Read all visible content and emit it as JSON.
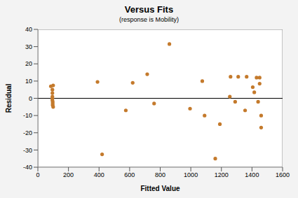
{
  "chart_data": {
    "type": "scatter",
    "title": "Versus Fits",
    "subtitle": "(response is Mobility)",
    "x_label": "Fitted Value",
    "y_label": "Residual",
    "x": [
      85,
      100,
      95,
      95,
      95,
      95,
      95,
      97,
      97,
      97,
      100,
      390,
      420,
      575,
      620,
      715,
      760,
      860,
      995,
      1075,
      1090,
      1160,
      1190,
      1255,
      1260,
      1290,
      1310,
      1355,
      1365,
      1405,
      1415,
      1430,
      1440,
      1450,
      1450,
      1460,
      1460
    ],
    "values": [
      7,
      7.5,
      5,
      3,
      1,
      0,
      -1,
      -2,
      -3,
      -4,
      -5,
      9.5,
      -32.5,
      -7,
      9,
      14,
      -3,
      31.5,
      -6,
      10,
      -10,
      -35,
      -15,
      1,
      12.5,
      -2,
      12.5,
      -7,
      12.5,
      6.5,
      3.5,
      12,
      -2,
      12,
      8.5,
      -10,
      -17
    ],
    "color": "#c47a2c",
    "marker": "circle",
    "xlim": [
      0,
      1600
    ],
    "xticks": [
      0,
      200,
      400,
      600,
      800,
      1000,
      1200,
      1400,
      1600
    ],
    "ylim": [
      -40,
      40
    ],
    "yticks": [
      -40,
      -30,
      -20,
      -10,
      0,
      10,
      20,
      30,
      40
    ],
    "hline": 0,
    "grid": false
  }
}
